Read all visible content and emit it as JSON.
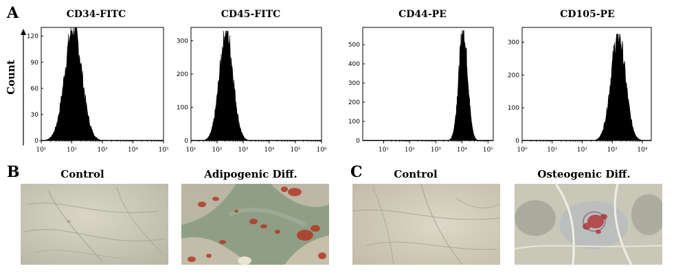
{
  "panel_labels": {
    "A": "A",
    "B": "B",
    "C": "C"
  },
  "y_axis_label": "Count",
  "chart_data": [
    {
      "type": "area",
      "title": "CD34-FITC",
      "xlabels": [
        "10¹",
        "10²",
        "10³",
        "10⁴",
        "10⁵"
      ],
      "xlog": [
        1,
        5
      ],
      "yticks": [
        0,
        30,
        60,
        90,
        120
      ],
      "ylim": [
        0,
        130
      ],
      "peak_log": 2.05,
      "peak_count": 130,
      "spread": 0.28
    },
    {
      "type": "area",
      "title": "CD45-FITC",
      "xlabels": [
        "10¹",
        "10²",
        "10³",
        "10⁴",
        "10⁵",
        "10⁶"
      ],
      "xlog": [
        1,
        6
      ],
      "yticks": [
        0,
        100,
        200,
        300
      ],
      "ylim": [
        0,
        340
      ],
      "peak_log": 2.35,
      "peak_count": 330,
      "spread": 0.26
    },
    {
      "type": "area",
      "title": "CD44-PE",
      "xlabels": [
        "10¹",
        "10²",
        "10³",
        "10⁴",
        "10⁵"
      ],
      "xlog": [
        0.2,
        5.2
      ],
      "yticks": [
        0,
        100,
        200,
        300,
        400,
        500
      ],
      "ylim": [
        0,
        590
      ],
      "peak_log": 4.05,
      "peak_count": 575,
      "spread": 0.17
    },
    {
      "type": "area",
      "title": "CD105-PE",
      "xlabels": [
        "10⁰",
        "10¹",
        "10²",
        "10³",
        "10⁴"
      ],
      "xlog": [
        0,
        4.3
      ],
      "yticks": [
        0,
        100,
        200,
        300
      ],
      "ylim": [
        0,
        345
      ],
      "peak_log": 3.2,
      "peak_count": 325,
      "spread": 0.24
    }
  ],
  "micrographs": [
    {
      "title": "Control"
    },
    {
      "title": "Adipogenic Diff."
    },
    {
      "title": "Control"
    },
    {
      "title": "Osteogenic Diff."
    }
  ]
}
